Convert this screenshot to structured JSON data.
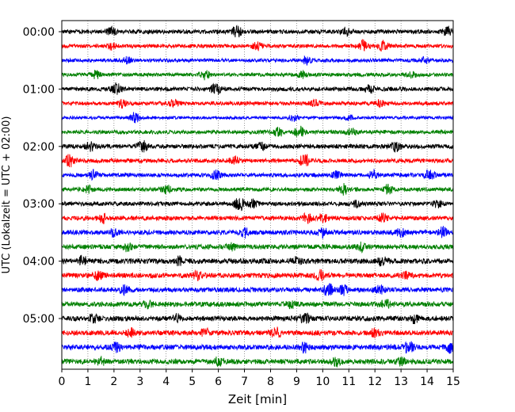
{
  "chart_data": {
    "type": "line",
    "title": "",
    "xlabel": "Zeit  [min]",
    "ylabel": "UTC (Lokalzeit = UTC + 02:00)",
    "xlim": [
      0,
      15
    ],
    "x_ticks": [
      "0",
      "1",
      "2",
      "3",
      "4",
      "5",
      "6",
      "7",
      "8",
      "9",
      "10",
      "11",
      "12",
      "13",
      "14",
      "15"
    ],
    "y_tick_labels": [
      "00:00",
      "01:00",
      "02:00",
      "03:00",
      "04:00",
      "05:00"
    ],
    "y_tick_rows": [
      0,
      4,
      8,
      12,
      16,
      20
    ],
    "trace_colors": [
      "#000000",
      "#ff0000",
      "#0000ff",
      "#008000"
    ],
    "grid": "vertical dotted at each minute",
    "traces": [
      {
        "row": 0,
        "start": "00:00",
        "color": "#000000",
        "amplitude": 0.3,
        "events": [
          [
            1.9,
            0.5
          ],
          [
            6.7,
            0.8
          ],
          [
            10.9,
            0.5
          ],
          [
            14.8,
            0.6
          ]
        ]
      },
      {
        "row": 1,
        "start": "00:15",
        "color": "#ff0000",
        "amplitude": 0.28,
        "events": [
          [
            1.9,
            0.4
          ],
          [
            7.5,
            0.5
          ],
          [
            11.6,
            1.0
          ],
          [
            12.3,
            0.7
          ]
        ]
      },
      {
        "row": 2,
        "start": "00:30",
        "color": "#0000ff",
        "amplitude": 0.26,
        "events": [
          [
            2.5,
            0.4
          ],
          [
            9.4,
            0.5
          ],
          [
            13.9,
            0.4
          ]
        ]
      },
      {
        "row": 3,
        "start": "00:45",
        "color": "#008000",
        "amplitude": 0.26,
        "events": [
          [
            1.3,
            0.5
          ],
          [
            5.5,
            0.6
          ],
          [
            9.2,
            0.4
          ],
          [
            13.4,
            0.4
          ]
        ]
      },
      {
        "row": 4,
        "start": "01:00",
        "color": "#000000",
        "amplitude": 0.3,
        "events": [
          [
            2.1,
            0.8
          ],
          [
            5.9,
            0.9
          ],
          [
            11.8,
            0.5
          ]
        ]
      },
      {
        "row": 5,
        "start": "01:15",
        "color": "#ff0000",
        "amplitude": 0.28,
        "events": [
          [
            2.3,
            0.5
          ],
          [
            4.3,
            0.4
          ],
          [
            9.7,
            0.4
          ],
          [
            12.2,
            0.4
          ]
        ]
      },
      {
        "row": 6,
        "start": "01:30",
        "color": "#0000ff",
        "amplitude": 0.22,
        "events": [
          [
            2.8,
            0.7
          ],
          [
            8.9,
            0.4
          ],
          [
            11.0,
            0.3
          ]
        ]
      },
      {
        "row": 7,
        "start": "01:45",
        "color": "#008000",
        "amplitude": 0.28,
        "events": [
          [
            8.3,
            0.6
          ],
          [
            9.1,
            0.9
          ],
          [
            11.1,
            0.4
          ]
        ]
      },
      {
        "row": 8,
        "start": "02:00",
        "color": "#000000",
        "amplitude": 0.32,
        "events": [
          [
            1.1,
            0.6
          ],
          [
            3.1,
            0.9
          ],
          [
            7.6,
            0.5
          ],
          [
            12.8,
            0.6
          ]
        ]
      },
      {
        "row": 9,
        "start": "02:15",
        "color": "#ff0000",
        "amplitude": 0.3,
        "events": [
          [
            0.3,
            0.8
          ],
          [
            6.6,
            0.5
          ],
          [
            9.3,
            1.0
          ]
        ]
      },
      {
        "row": 10,
        "start": "02:30",
        "color": "#0000ff",
        "amplitude": 0.3,
        "events": [
          [
            1.2,
            0.6
          ],
          [
            5.9,
            0.6
          ],
          [
            10.5,
            0.5
          ],
          [
            11.9,
            0.6
          ],
          [
            14.1,
            0.7
          ]
        ]
      },
      {
        "row": 11,
        "start": "02:45",
        "color": "#008000",
        "amplitude": 0.28,
        "events": [
          [
            1.0,
            0.4
          ],
          [
            4.0,
            0.6
          ],
          [
            10.8,
            0.8
          ],
          [
            12.5,
            0.6
          ]
        ]
      },
      {
        "row": 12,
        "start": "03:00",
        "color": "#000000",
        "amplitude": 0.3,
        "events": [
          [
            6.8,
            1.0
          ],
          [
            7.3,
            0.6
          ],
          [
            11.3,
            0.4
          ],
          [
            14.4,
            0.5
          ]
        ]
      },
      {
        "row": 13,
        "start": "03:15",
        "color": "#ff0000",
        "amplitude": 0.32,
        "events": [
          [
            1.6,
            0.6
          ],
          [
            9.4,
            0.6
          ],
          [
            10.0,
            0.6
          ],
          [
            12.3,
            0.5
          ]
        ]
      },
      {
        "row": 14,
        "start": "03:30",
        "color": "#0000ff",
        "amplitude": 0.34,
        "events": [
          [
            2.0,
            0.5
          ],
          [
            7.0,
            0.6
          ],
          [
            10.0,
            0.6
          ],
          [
            13.0,
            0.5
          ],
          [
            14.6,
            0.7
          ]
        ]
      },
      {
        "row": 15,
        "start": "03:45",
        "color": "#008000",
        "amplitude": 0.34,
        "events": [
          [
            2.5,
            0.5
          ],
          [
            6.5,
            0.5
          ],
          [
            11.5,
            0.5
          ]
        ]
      },
      {
        "row": 16,
        "start": "04:00",
        "color": "#000000",
        "amplitude": 0.38,
        "events": [
          [
            0.8,
            0.6
          ],
          [
            4.5,
            0.5
          ],
          [
            9.0,
            0.5
          ],
          [
            12.3,
            0.6
          ]
        ]
      },
      {
        "row": 17,
        "start": "04:15",
        "color": "#ff0000",
        "amplitude": 0.36,
        "events": [
          [
            1.4,
            0.5
          ],
          [
            5.2,
            0.5
          ],
          [
            9.9,
            0.6
          ],
          [
            13.2,
            0.5
          ]
        ]
      },
      {
        "row": 18,
        "start": "04:30",
        "color": "#0000ff",
        "amplitude": 0.34,
        "events": [
          [
            2.4,
            0.5
          ],
          [
            10.2,
            1.0
          ],
          [
            10.8,
            0.6
          ],
          [
            12.2,
            0.5
          ]
        ]
      },
      {
        "row": 19,
        "start": "04:45",
        "color": "#008000",
        "amplitude": 0.36,
        "events": [
          [
            3.3,
            0.5
          ],
          [
            8.8,
            0.5
          ],
          [
            12.4,
            0.6
          ]
        ]
      },
      {
        "row": 20,
        "start": "05:00",
        "color": "#000000",
        "amplitude": 0.36,
        "events": [
          [
            1.2,
            0.6
          ],
          [
            4.4,
            0.5
          ],
          [
            9.3,
            0.9
          ],
          [
            13.5,
            0.5
          ]
        ]
      },
      {
        "row": 21,
        "start": "05:15",
        "color": "#ff0000",
        "amplitude": 0.36,
        "events": [
          [
            2.6,
            0.6
          ],
          [
            5.5,
            0.5
          ],
          [
            8.2,
            0.8
          ],
          [
            12.0,
            0.5
          ]
        ]
      },
      {
        "row": 22,
        "start": "05:30",
        "color": "#0000ff",
        "amplitude": 0.38,
        "events": [
          [
            2.1,
            0.5
          ],
          [
            9.3,
            0.6
          ],
          [
            13.3,
            0.8
          ],
          [
            14.9,
            0.7
          ]
        ]
      },
      {
        "row": 23,
        "start": "05:45",
        "color": "#008000",
        "amplitude": 0.36,
        "events": [
          [
            1.5,
            0.5
          ],
          [
            6.0,
            0.5
          ],
          [
            10.5,
            0.5
          ],
          [
            13.0,
            0.5
          ]
        ]
      }
    ]
  }
}
